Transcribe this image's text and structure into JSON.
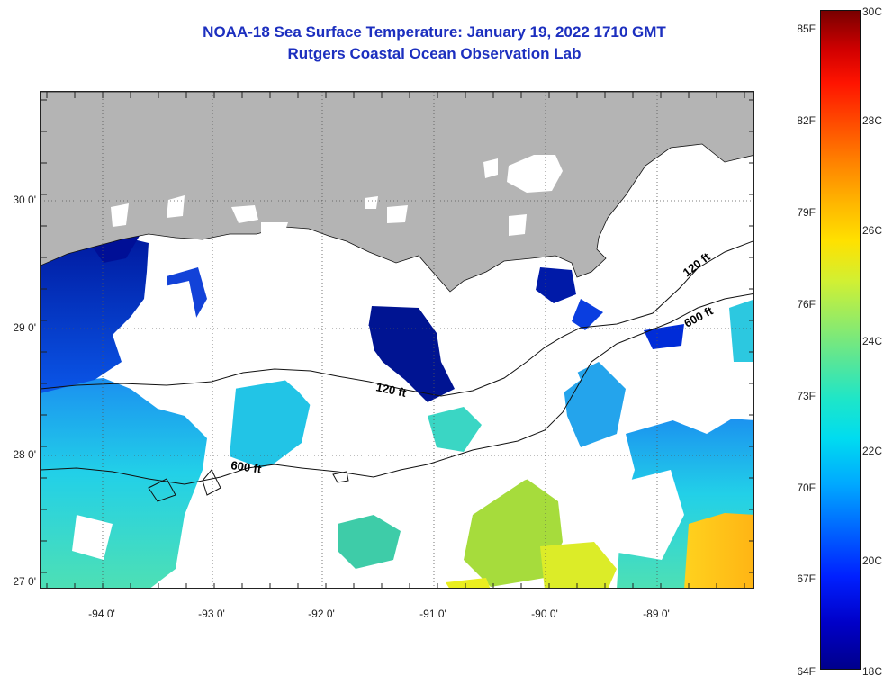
{
  "title": {
    "line1": "NOAA-18 Sea Surface Temperature:  January 19, 2022 1710 GMT",
    "line2": "Rutgers Coastal Ocean Observation Lab"
  },
  "map": {
    "lat_labels": [
      "30 0'",
      "29 0'",
      "28 0'",
      "27 0'"
    ],
    "lon_labels": [
      "-94 0'",
      "-93 0'",
      "-92 0'",
      "-91 0'",
      "-90 0'",
      "-89 0'"
    ],
    "contour_labels": [
      "120 ft",
      "600 ft",
      "120 ft",
      "600 ft"
    ],
    "colors": {
      "land": "#b4b4b4",
      "cloud": "#ffffff",
      "frame": "#222222"
    }
  },
  "colorbar": {
    "fahrenheit_labels": [
      "85F",
      "82F",
      "79F",
      "76F",
      "73F",
      "70F",
      "67F",
      "64F"
    ],
    "celsius_labels": [
      "30C",
      "28C",
      "26C",
      "24C",
      "22C",
      "20C",
      "18C"
    ],
    "min_c": 18,
    "max_c": 30
  }
}
